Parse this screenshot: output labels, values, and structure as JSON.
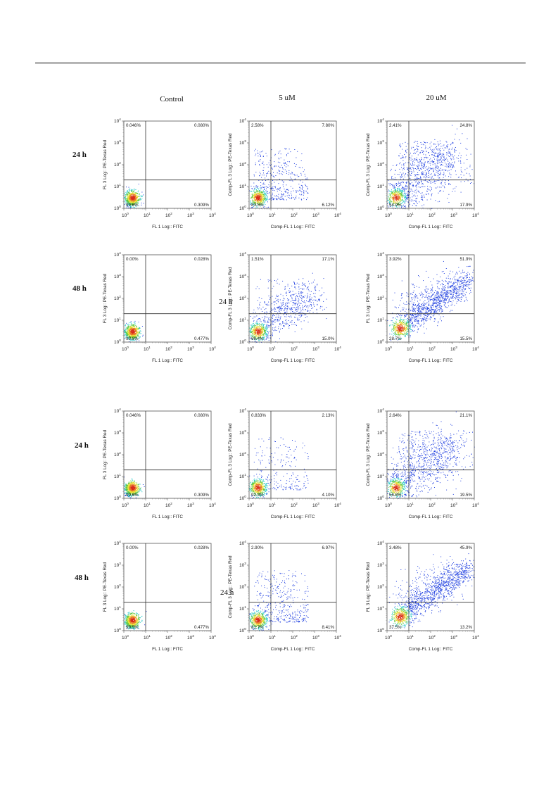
{
  "columns": [
    "Control",
    "5 uM",
    "20 uM"
  ],
  "stray_label": "24 h",
  "colors": {
    "dot_blue": "#1f3fe0",
    "dot_cyan": "#22c8c8",
    "dot_green": "#5cc83c",
    "dot_yellow": "#e8e030",
    "dot_orange": "#e87828",
    "dot_red": "#d82818",
    "gate": "#333333"
  },
  "blocks": [
    {
      "rows": [
        {
          "label": "24 h",
          "panels": [
            {
              "type": "scatter",
              "xlabel": "FL 1 Log:: FITC",
              "ylabel": "FL 3 Log:: PE-Texas Red",
              "xlim": [
                1,
                10000
              ],
              "ylim": [
                1,
                10000
              ],
              "x_scale": "log",
              "y_scale": "log",
              "gate_x": 10,
              "gate_y": 20,
              "quadrants": {
                "UL": "0.046%",
                "UR": "0.080%",
                "LL": "99.6%",
                "LR": "0.309%"
              },
              "spread": "control"
            },
            {
              "type": "scatter",
              "xlabel": "Comp-FL 1 Log:: FITC",
              "ylabel": "Comp-FL 3 Log:: PE-Texas Red",
              "xlim": [
                1,
                10000
              ],
              "ylim": [
                1,
                10000
              ],
              "x_scale": "log",
              "y_scale": "log",
              "gate_x": 10,
              "gate_y": 20,
              "quadrants": {
                "UL": "2.58%",
                "UR": "7.80%",
                "LL": "83.5%",
                "LR": "6.12%"
              },
              "spread": "low"
            },
            {
              "type": "scatter",
              "xlabel": "Comp-FL 1 Log:: FITC",
              "ylabel": "Comp-FL 3 Log:: PE-Texas Red",
              "xlim": [
                1,
                10000
              ],
              "ylim": [
                1,
                10000
              ],
              "x_scale": "log",
              "y_scale": "log",
              "gate_x": 10,
              "gate_y": 20,
              "quadrants": {
                "UL": "2.41%",
                "UR": "24.8%",
                "LL": "54.9%",
                "LR": "17.9%"
              },
              "spread": "high"
            }
          ]
        },
        {
          "label": "48 h",
          "panels": [
            {
              "type": "scatter",
              "xlabel": "FL 1 Log:: FITC",
              "ylabel": "FL 3 Log:: PE-Texas Red",
              "xlim": [
                1,
                10000
              ],
              "ylim": [
                1,
                10000
              ],
              "x_scale": "log",
              "y_scale": "log",
              "gate_x": 10,
              "gate_y": 20,
              "quadrants": {
                "UL": "0.00%",
                "UR": "0.028%",
                "LL": "99.5%",
                "LR": "0.477%"
              },
              "spread": "control"
            },
            {
              "type": "scatter",
              "xlabel": "Comp-FL 1 Log:: FITC",
              "ylabel": "Comp-FL 3 Log:: PE-Texas Red",
              "xlim": [
                1,
                10000
              ],
              "ylim": [
                1,
                10000
              ],
              "x_scale": "log",
              "y_scale": "log",
              "gate_x": 10,
              "gate_y": 20,
              "quadrants": {
                "UL": "1.51%",
                "UR": "17.1%",
                "LL": "66.4%",
                "LR": "15.0%"
              },
              "spread": "mid"
            },
            {
              "type": "scatter",
              "xlabel": "Comp-FL 1 Log:: FITC",
              "ylabel": "FL 3 Log:: PE-Texas Red",
              "xlim": [
                1,
                10000
              ],
              "ylim": [
                1,
                10000
              ],
              "x_scale": "log",
              "y_scale": "log",
              "gate_x": 10,
              "gate_y": 20,
              "quadrants": {
                "UL": "3.92%",
                "UR": "51.9%",
                "LL": "28.7%",
                "LR": "15.5%"
              },
              "spread": "diag"
            }
          ]
        }
      ]
    },
    {
      "rows": [
        {
          "label": "24 h",
          "panels": [
            {
              "type": "scatter",
              "xlabel": "FL 1 Log:: FITC",
              "ylabel": "FL 3 Log:: PE-Texas Red",
              "xlim": [
                1,
                10000
              ],
              "ylim": [
                1,
                10000
              ],
              "x_scale": "log",
              "y_scale": "log",
              "gate_x": 10,
              "gate_y": 20,
              "quadrants": {
                "UL": "0.046%",
                "UR": "0.080%",
                "LL": "99.6%",
                "LR": "0.309%"
              },
              "spread": "control"
            },
            {
              "type": "scatter",
              "xlabel": "Comp-FL 1 Log:: FITC",
              "ylabel": "Comp-FL 3 Log:: PE-Texas Red",
              "xlim": [
                1,
                10000
              ],
              "ylim": [
                1,
                10000
              ],
              "x_scale": "log",
              "y_scale": "log",
              "gate_x": 10,
              "gate_y": 20,
              "quadrants": {
                "UL": "0.833%",
                "UR": "2.13%",
                "LL": "92.9%",
                "LR": "4.10%"
              },
              "spread": "sparse"
            },
            {
              "type": "scatter",
              "xlabel": "Comp-FL 1 Log:: FITC",
              "ylabel": "Comp-FL 3 Log:: PE-Texas Red",
              "xlim": [
                1,
                10000
              ],
              "ylim": [
                1,
                10000
              ],
              "x_scale": "log",
              "y_scale": "log",
              "gate_x": 10,
              "gate_y": 20,
              "quadrants": {
                "UL": "2.64%",
                "UR": "21.1%",
                "LL": "56.8%",
                "LR": "19.5%"
              },
              "spread": "high"
            }
          ]
        },
        {
          "label": "48 h",
          "panels": [
            {
              "type": "scatter",
              "xlabel": "FL 1 Log:: FITC",
              "ylabel": "FL 3 Log:: PE-Texas Red",
              "xlim": [
                1,
                10000
              ],
              "ylim": [
                1,
                10000
              ],
              "x_scale": "log",
              "y_scale": "log",
              "gate_x": 10,
              "gate_y": 20,
              "quadrants": {
                "UL": "0.00%",
                "UR": "0.028%",
                "LL": "99.5%",
                "LR": "0.477%"
              },
              "spread": "control"
            },
            {
              "type": "scatter",
              "xlabel": "Comp-FL 1 Log:: FITC",
              "ylabel": "Comp-FL 3 Log:: PE-Texas Red",
              "xlim": [
                1,
                10000
              ],
              "ylim": [
                1,
                10000
              ],
              "x_scale": "log",
              "y_scale": "log",
              "gate_x": 10,
              "gate_y": 20,
              "quadrants": {
                "UL": "2.90%",
                "UR": "6.97%",
                "LL": "81.7%",
                "LR": "8.41%"
              },
              "spread": "low"
            },
            {
              "type": "scatter",
              "xlabel": "Comp-FL 1 Log:: FITC",
              "ylabel": "FL 3 Log:: PE-Texas Red",
              "xlim": [
                1,
                10000
              ],
              "ylim": [
                1,
                10000
              ],
              "x_scale": "log",
              "y_scale": "log",
              "gate_x": 10,
              "gate_y": 20,
              "quadrants": {
                "UL": "3.48%",
                "UR": "45.9%",
                "LL": "37.5%",
                "LR": "13.2%"
              },
              "spread": "diag"
            }
          ]
        }
      ]
    }
  ]
}
